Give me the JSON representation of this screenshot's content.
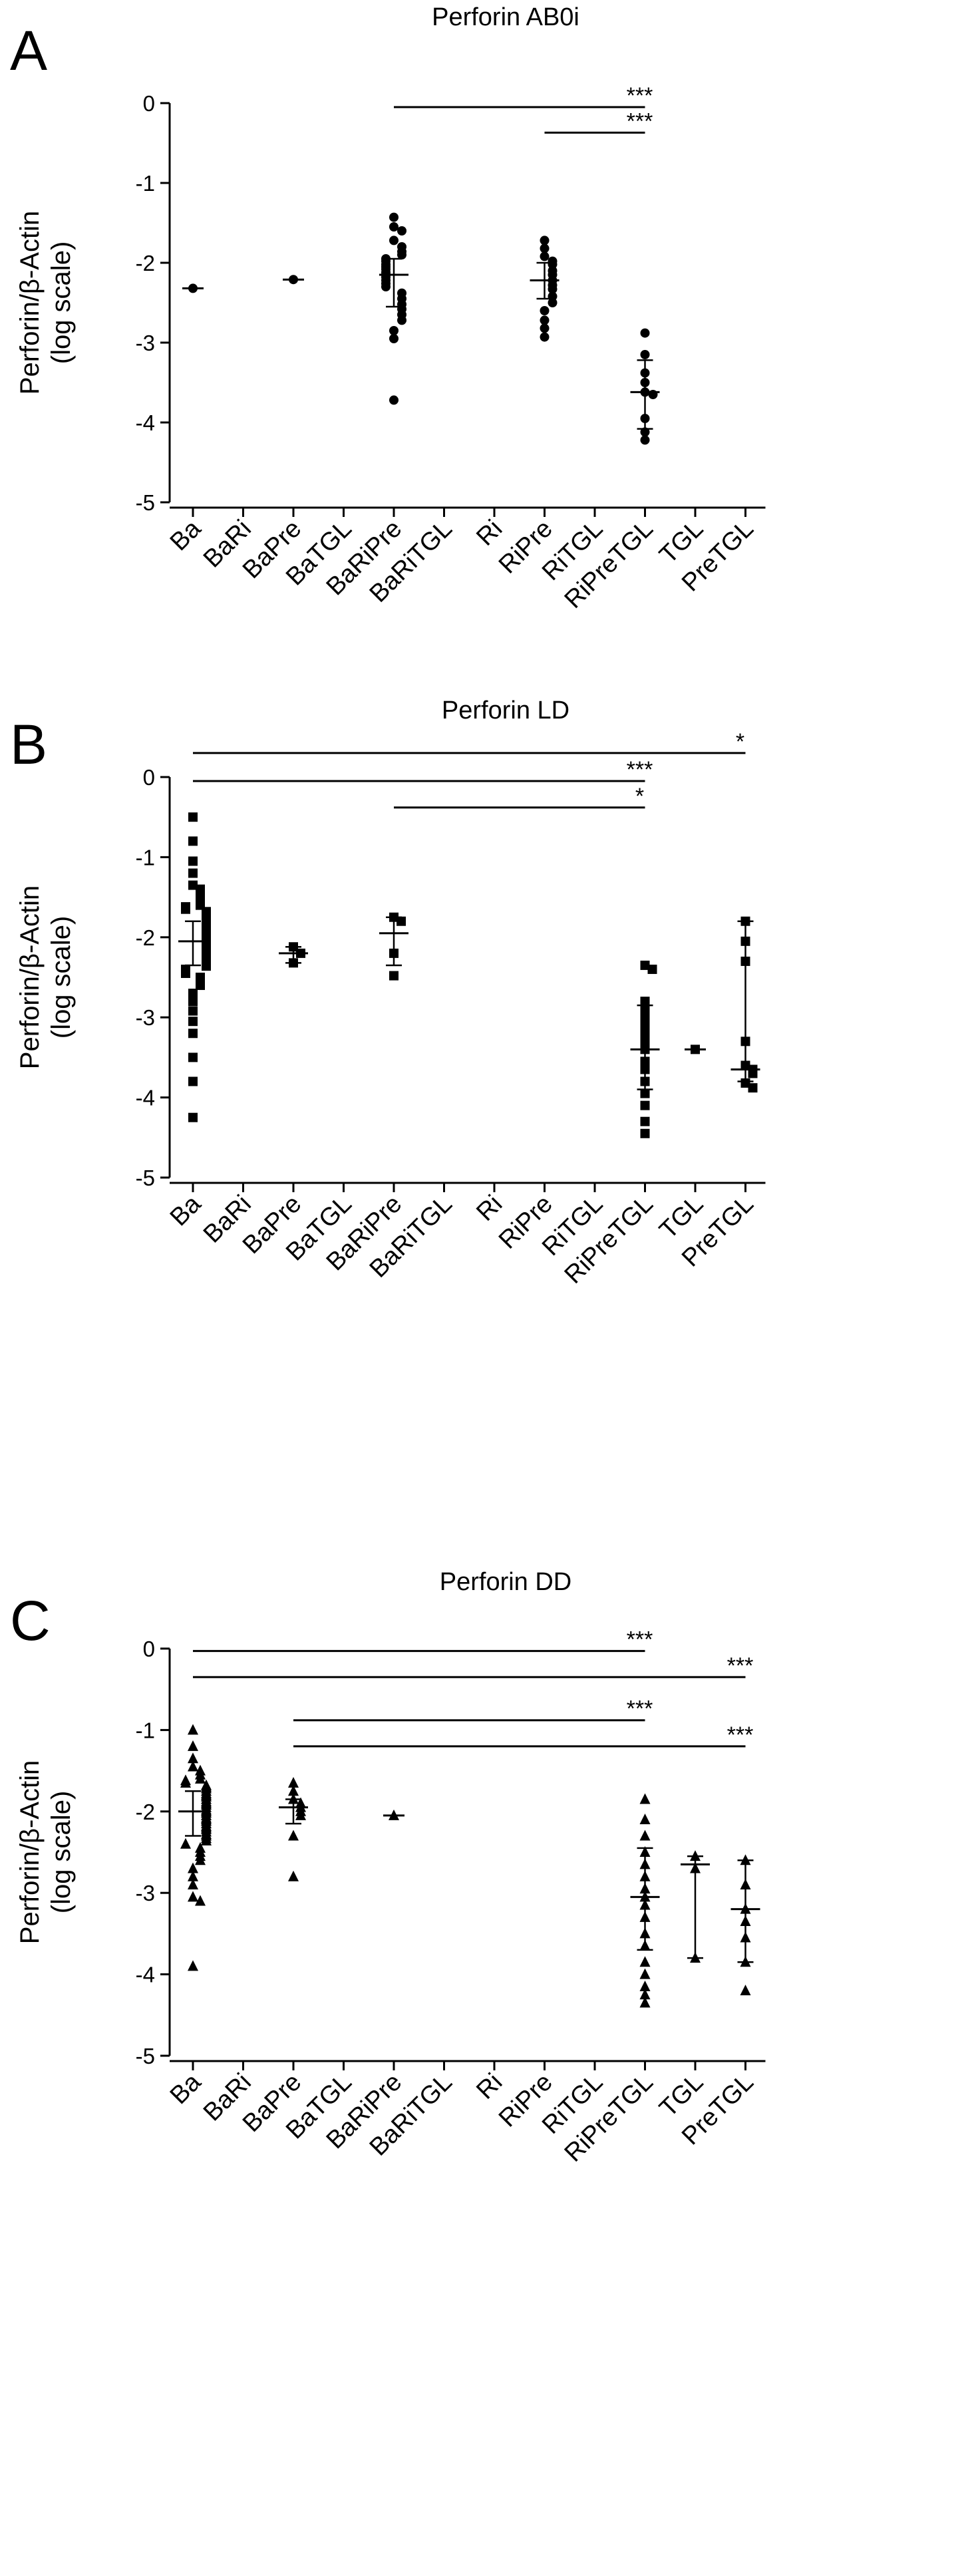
{
  "chart_data": [
    {
      "type": "scatter",
      "panel": "A",
      "title": "Perforin AB0i",
      "ylabel": "Perforin/β-Actin\n(log scale)",
      "ylim": [
        -5,
        0
      ],
      "yticks": [
        "0",
        "-1",
        "-2",
        "-3",
        "-4",
        "-5"
      ],
      "marker": "circle",
      "categories": [
        "Ba",
        "BaRi",
        "BaPre",
        "BaTGL",
        "BaRiPre",
        "BaRiTGL",
        "Ri",
        "RiPre",
        "RiTGL",
        "RiPreTGL",
        "TGL",
        "PreTGL"
      ],
      "groups": [
        {
          "category": "Ba",
          "median": -2.32,
          "points": [
            -2.32
          ]
        },
        {
          "category": "BaPre",
          "median": -2.21,
          "points": [
            -2.21
          ]
        },
        {
          "category": "BaRiPre",
          "median": -2.15,
          "q1": -2.55,
          "q3": -1.95,
          "points": [
            -1.43,
            -1.55,
            -1.6,
            -1.72,
            -1.8,
            -1.86,
            -1.9,
            -1.95,
            -1.98,
            -2.02,
            -2.05,
            -2.08,
            -2.12,
            -2.15,
            -2.18,
            -2.22,
            -2.26,
            -2.3,
            -2.38,
            -2.45,
            -2.52,
            -2.58,
            -2.65,
            -2.72,
            -2.85,
            -2.95,
            -3.72
          ]
        },
        {
          "category": "RiPre",
          "median": -2.22,
          "q1": -2.45,
          "q3": -2.0,
          "points": [
            -1.72,
            -1.82,
            -1.92,
            -1.98,
            -2.02,
            -2.1,
            -2.15,
            -2.22,
            -2.28,
            -2.33,
            -2.42,
            -2.5,
            -2.6,
            -2.72,
            -2.82,
            -2.93
          ]
        },
        {
          "category": "RiPreTGL",
          "median": -3.62,
          "q1": -4.08,
          "q3": -3.22,
          "points": [
            -2.88,
            -3.15,
            -3.38,
            -3.5,
            -3.62,
            -3.65,
            -3.95,
            -4.12,
            -4.22
          ]
        }
      ],
      "significance": [
        {
          "from": "BaRiPre",
          "to": "RiPreTGL",
          "y": -0.05,
          "label": "***"
        },
        {
          "from": "RiPre",
          "to": "RiPreTGL",
          "y": -0.37,
          "label": "***"
        }
      ]
    },
    {
      "type": "scatter",
      "panel": "B",
      "title": "Perforin LD",
      "ylabel": "Perforin/β-Actin\n(log scale)",
      "ylim": [
        -5,
        0
      ],
      "yticks": [
        "0",
        "-1",
        "-2",
        "-3",
        "-4",
        "-5"
      ],
      "marker": "square",
      "categories": [
        "Ba",
        "BaRi",
        "BaPre",
        "BaTGL",
        "BaRiPre",
        "BaRiTGL",
        "Ri",
        "RiPre",
        "RiTGL",
        "RiPreTGL",
        "TGL",
        "PreTGL"
      ],
      "groups": [
        {
          "category": "Ba",
          "median": -2.05,
          "q1": -2.35,
          "q3": -1.8,
          "points": [
            -0.5,
            -0.8,
            -1.05,
            -1.2,
            -1.35,
            -1.4,
            -1.45,
            -1.5,
            -1.55,
            -1.6,
            -1.62,
            -1.65,
            -1.68,
            -1.7,
            -1.72,
            -1.75,
            -1.78,
            -1.8,
            -1.82,
            -1.85,
            -1.88,
            -1.9,
            -1.92,
            -1.95,
            -1.98,
            -2.0,
            -2.02,
            -2.05,
            -2.08,
            -2.1,
            -2.12,
            -2.15,
            -2.18,
            -2.2,
            -2.22,
            -2.25,
            -2.28,
            -2.3,
            -2.33,
            -2.36,
            -2.4,
            -2.45,
            -2.5,
            -2.55,
            -2.6,
            -2.7,
            -2.8,
            -2.92,
            -3.05,
            -3.2,
            -3.5,
            -3.8,
            -4.25
          ]
        },
        {
          "category": "BaPre",
          "median": -2.2,
          "q1": -2.32,
          "q3": -2.12,
          "points": [
            -2.12,
            -2.2,
            -2.32
          ]
        },
        {
          "category": "BaRiPre",
          "median": -1.95,
          "q1": -2.35,
          "q3": -1.75,
          "points": [
            -1.75,
            -1.8,
            -2.2,
            -2.48
          ]
        },
        {
          "category": "RiPreTGL",
          "median": -3.4,
          "q1": -3.9,
          "q3": -2.85,
          "points": [
            -2.35,
            -2.4,
            -2.8,
            -2.9,
            -3.0,
            -3.1,
            -3.2,
            -3.3,
            -3.4,
            -3.55,
            -3.65,
            -3.8,
            -3.95,
            -4.1,
            -4.3,
            -4.45
          ]
        },
        {
          "category": "TGL",
          "median": -3.4,
          "points": [
            -3.4
          ]
        },
        {
          "category": "PreTGL",
          "median": -3.65,
          "q1": -3.8,
          "q3": -1.8,
          "points": [
            -1.8,
            -2.05,
            -2.3,
            -3.3,
            -3.6,
            -3.65,
            -3.7,
            -3.82,
            -3.88
          ]
        }
      ],
      "significance": [
        {
          "from": "Ba",
          "to": "PreTGL",
          "y": 0.3,
          "label": "*"
        },
        {
          "from": "Ba",
          "to": "RiPreTGL",
          "y": -0.05,
          "label": "***"
        },
        {
          "from": "BaRiPre",
          "to": "RiPreTGL",
          "y": -0.38,
          "label": "*"
        }
      ]
    },
    {
      "type": "scatter",
      "panel": "C",
      "title": "Perforin DD",
      "ylabel": "Perforin/β-Actin\n(log scale)",
      "ylim": [
        -5,
        0
      ],
      "yticks": [
        "0",
        "-1",
        "-2",
        "-3",
        "-4",
        "-5"
      ],
      "marker": "triangle",
      "categories": [
        "Ba",
        "BaRi",
        "BaPre",
        "BaTGL",
        "BaRiPre",
        "BaRiTGL",
        "Ri",
        "RiPre",
        "RiTGL",
        "RiPreTGL",
        "TGL",
        "PreTGL"
      ],
      "groups": [
        {
          "category": "Ba",
          "median": -2.0,
          "q1": -2.3,
          "q3": -1.75,
          "points": [
            -1.0,
            -1.2,
            -1.35,
            -1.45,
            -1.5,
            -1.55,
            -1.6,
            -1.62,
            -1.65,
            -1.68,
            -1.7,
            -1.72,
            -1.75,
            -1.78,
            -1.8,
            -1.82,
            -1.85,
            -1.88,
            -1.9,
            -1.92,
            -1.95,
            -1.98,
            -2.0,
            -2.02,
            -2.05,
            -2.08,
            -2.1,
            -2.12,
            -2.15,
            -2.18,
            -2.2,
            -2.22,
            -2.25,
            -2.28,
            -2.3,
            -2.33,
            -2.36,
            -2.4,
            -2.45,
            -2.5,
            -2.55,
            -2.6,
            -2.7,
            -2.8,
            -2.9,
            -3.05,
            -3.1,
            -3.9
          ]
        },
        {
          "category": "BaPre",
          "median": -1.95,
          "q1": -2.15,
          "q3": -1.85,
          "points": [
            -1.65,
            -1.75,
            -1.85,
            -1.9,
            -1.95,
            -2.0,
            -2.05,
            -2.3,
            -2.8
          ]
        },
        {
          "category": "BaRiPre",
          "median": -2.05,
          "points": [
            -2.05
          ]
        },
        {
          "category": "RiPreTGL",
          "median": -3.05,
          "q1": -3.7,
          "q3": -2.45,
          "points": [
            -1.85,
            -2.1,
            -2.3,
            -2.5,
            -2.65,
            -2.8,
            -2.95,
            -3.05,
            -3.15,
            -3.3,
            -3.5,
            -3.65,
            -3.85,
            -4.0,
            -4.15,
            -4.25,
            -4.35
          ]
        },
        {
          "category": "TGL",
          "median": -2.65,
          "q1": -3.8,
          "q3": -2.55,
          "points": [
            -2.55,
            -2.7,
            -3.8
          ]
        },
        {
          "category": "PreTGL",
          "median": -3.2,
          "q1": -3.85,
          "q3": -2.6,
          "points": [
            -2.6,
            -2.9,
            -3.2,
            -3.35,
            -3.55,
            -3.85,
            -4.2
          ]
        }
      ],
      "significance": [
        {
          "from": "Ba",
          "to": "RiPreTGL",
          "y": -0.03,
          "label": "***"
        },
        {
          "from": "Ba",
          "to": "PreTGL",
          "y": -0.35,
          "label": "***"
        },
        {
          "from": "BaPre",
          "to": "RiPreTGL",
          "y": -0.88,
          "label": "***"
        },
        {
          "from": "BaPre",
          "to": "PreTGL",
          "y": -1.2,
          "label": "***"
        }
      ]
    }
  ]
}
